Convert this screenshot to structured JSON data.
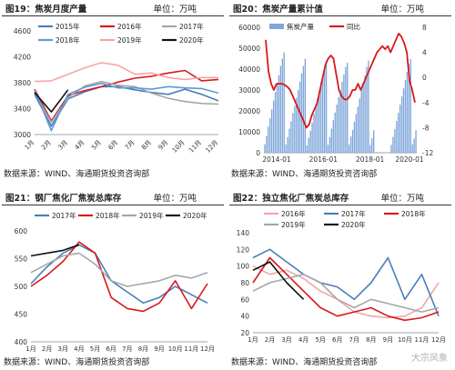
{
  "watermark": "大宗风象",
  "chart_data": [
    {
      "type": "line",
      "title": "图19：焦炭月度产量",
      "unit": "单位：万吨",
      "source": "数据来源：WIND、海通期货投资咨询部",
      "categories": [
        "1月",
        "2月",
        "3月",
        "4月",
        "5月",
        "6月",
        "7月",
        "8月",
        "9月",
        "10月",
        "11月",
        "12月"
      ],
      "ylim": [
        3000,
        4600
      ],
      "yticks": [
        "3000",
        "3400",
        "3800",
        "4200",
        "4600"
      ],
      "series": [
        {
          "name": "2015年",
          "color": "#4a7ebb",
          "values": [
            3620,
            3130,
            3550,
            3660,
            3740,
            3740,
            3690,
            3650,
            3620,
            3700,
            3620,
            3520
          ]
        },
        {
          "name": "2016年",
          "color": "#d7191c",
          "values": [
            3700,
            3210,
            3600,
            3680,
            3740,
            3810,
            3870,
            3900,
            3950,
            3990,
            3830,
            3850
          ]
        },
        {
          "name": "2017年",
          "color": "#a6a6a6",
          "values": [
            3650,
            3190,
            3570,
            3750,
            3820,
            3760,
            3740,
            3640,
            3560,
            3510,
            3480,
            3470
          ]
        },
        {
          "name": "2018年",
          "color": "#5b9bd5",
          "values": [
            3690,
            3060,
            3620,
            3730,
            3790,
            3720,
            3720,
            3700,
            3740,
            3720,
            3710,
            3640
          ]
        },
        {
          "name": "2019年",
          "color": "#f4a6a6",
          "values": [
            3820,
            3830,
            3930,
            4030,
            4110,
            4070,
            3930,
            3950,
            3880,
            3850,
            3880,
            3880
          ]
        },
        {
          "name": "2020年",
          "color": "#111111",
          "values": [
            3650,
            3350,
            3690,
            null,
            null,
            null,
            null,
            null,
            null,
            null,
            null,
            null
          ]
        }
      ]
    },
    {
      "type": "bar",
      "title": "图20：焦炭产量累计值",
      "unit": "单位：万吨",
      "source": "数据来源：WIND、海通期货投资咨询部",
      "ylim": [
        0,
        60000
      ],
      "yticks": [
        "0",
        "10000",
        "20000",
        "30000",
        "40000",
        "50000",
        "60000"
      ],
      "y2lim": [
        -12,
        8
      ],
      "y2ticks": [
        "-12",
        "-8",
        "-4",
        "0",
        "4",
        "8"
      ],
      "xticks": [
        "2014-01",
        "2016-01",
        "2018-01",
        "2020-01"
      ],
      "series": [
        {
          "name": "焦炭产量",
          "color": "#7ea6d9",
          "values": [
            4000,
            8000,
            12500,
            16500,
            20800,
            25000,
            29000,
            33000,
            37000,
            41500,
            45000,
            48000,
            3900,
            7500,
            11500,
            15000,
            18900,
            22500,
            26200,
            30000,
            34000,
            38000,
            41500,
            45000,
            3500,
            7200,
            10500,
            14500,
            18500,
            22000,
            26000,
            29500,
            33500,
            37000,
            41000,
            44000,
            3800,
            7500,
            11500,
            15500,
            19200,
            23000,
            26500,
            30000,
            34000,
            37500,
            41000,
            43000,
            3900,
            7800,
            11000,
            14800,
            18500,
            22000,
            26000,
            30000,
            33500,
            37000,
            41000,
            44000,
            3700,
            7000,
            10800,
            null,
            null,
            null,
            null,
            null,
            null,
            null,
            null,
            null,
            3800,
            7600,
            11300,
            15200,
            19100,
            23000,
            26900,
            30800,
            34700,
            38600,
            42500,
            44800,
            4000,
            6800,
            10800
          ]
        },
        {
          "name": "同比",
          "color": "#d7191c",
          "axis": "right",
          "values": [
            6,
            1,
            -1,
            -2,
            -1,
            -1,
            -1,
            -1.2,
            -1.5,
            -2,
            -3,
            -4,
            -5,
            -6,
            -7,
            -8,
            -7.5,
            -6,
            -5,
            -4,
            -2,
            0,
            2,
            3,
            3.5,
            3,
            0.5,
            -2,
            -3,
            -3.5,
            -3.5,
            -3,
            -2,
            -2,
            -1,
            -2,
            -1,
            0,
            1,
            2,
            3,
            4,
            4.5,
            5,
            4.5,
            5,
            4,
            5,
            6,
            7,
            6.5,
            5.5,
            4,
            -0.5,
            -2,
            -4
          ]
        }
      ]
    },
    {
      "type": "line",
      "title": "图21：钢厂焦化厂焦炭总库存",
      "unit": "单位：万吨",
      "source": "数据来源：WIND、海通期货投资咨询部",
      "categories": [
        "1月",
        "2月",
        "3月",
        "4月",
        "5月",
        "6月",
        "7月",
        "8月",
        "9月",
        "10月",
        "11月",
        "12月"
      ],
      "ylim": [
        400,
        600
      ],
      "yticks": [
        "400",
        "450",
        "500",
        "550",
        "600"
      ],
      "series": [
        {
          "name": "2017年",
          "color": "#4a7ebb",
          "values": [
            505,
            535,
            560,
            575,
            560,
            510,
            490,
            470,
            480,
            500,
            485,
            470
          ]
        },
        {
          "name": "2018年",
          "color": "#d7191c",
          "values": [
            500,
            520,
            545,
            580,
            560,
            480,
            460,
            455,
            470,
            510,
            460,
            505
          ]
        },
        {
          "name": "2019年",
          "color": "#a6a6a6",
          "values": [
            525,
            540,
            555,
            560,
            540,
            510,
            500,
            505,
            510,
            520,
            515,
            525
          ]
        },
        {
          "name": "2020年",
          "color": "#111111",
          "values": [
            555,
            560,
            565,
            575,
            null,
            null,
            null,
            null,
            null,
            null,
            null,
            null
          ]
        }
      ]
    },
    {
      "type": "line",
      "title": "图22：独立焦化厂焦炭总库存",
      "unit": "单位：万吨",
      "source": "数据来源：WIND、海通期货投资咨询部",
      "categories": [
        "1月",
        "2月",
        "3月",
        "4月",
        "5月",
        "6月",
        "7月",
        "8月",
        "9月",
        "10月",
        "11月",
        "12月"
      ],
      "ylim": [
        20,
        140
      ],
      "yticks": [
        "20",
        "40",
        "60",
        "80",
        "100",
        "120",
        "140"
      ],
      "series": [
        {
          "name": "2016年",
          "color": "#f4a6a6",
          "values": [
            100,
            90,
            95,
            85,
            70,
            60,
            45,
            40,
            38,
            40,
            50,
            80
          ]
        },
        {
          "name": "2017年",
          "color": "#4a7ebb",
          "values": [
            110,
            120,
            105,
            90,
            80,
            75,
            60,
            80,
            110,
            60,
            90,
            40
          ]
        },
        {
          "name": "2018年",
          "color": "#d7191c",
          "values": [
            80,
            110,
            90,
            70,
            50,
            40,
            45,
            50,
            40,
            35,
            38,
            45
          ]
        },
        {
          "name": "2019年",
          "color": "#a6a6a6",
          "values": [
            70,
            80,
            85,
            90,
            80,
            60,
            50,
            60,
            55,
            50,
            45,
            50
          ]
        },
        {
          "name": "2020年",
          "color": "#111111",
          "values": [
            95,
            105,
            80,
            60,
            null,
            null,
            null,
            null,
            null,
            null,
            null,
            null
          ]
        }
      ]
    }
  ]
}
